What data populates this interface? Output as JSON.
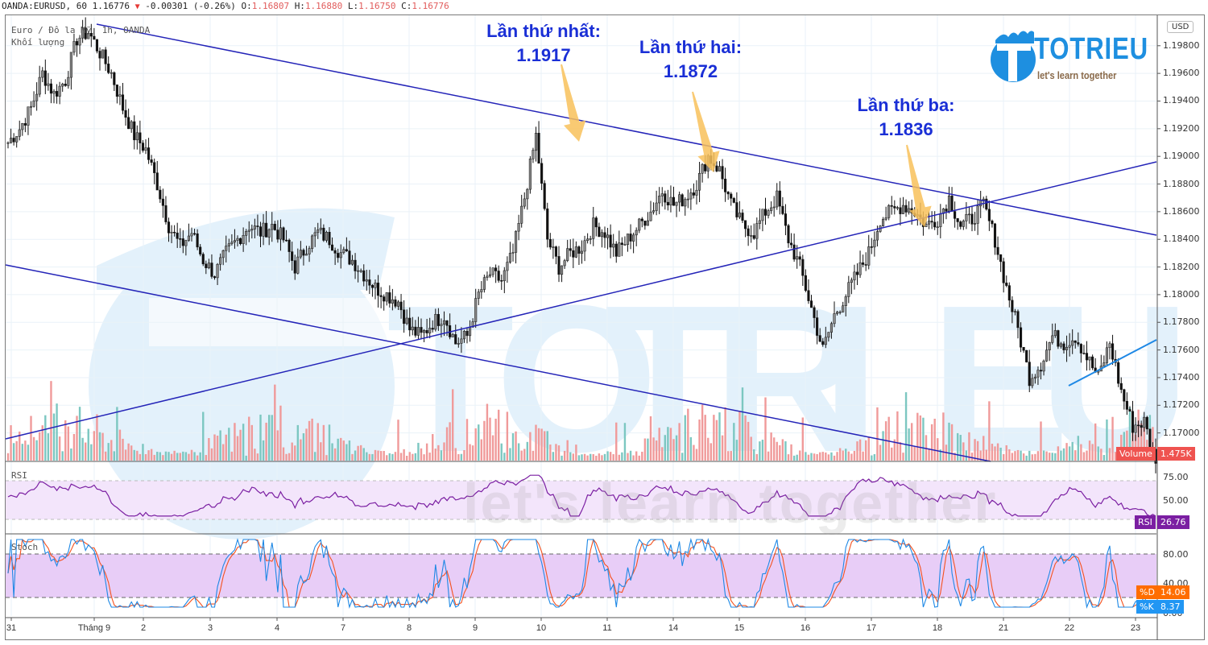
{
  "header": {
    "symbol": "OANDA:EURUSD, 60",
    "last": "1.16776",
    "change": "-0.00301 (-0.26%)",
    "open_label": "O:",
    "open": "1.16807",
    "high_label": "H:",
    "high": "1.16880",
    "low_label": "L:",
    "low": "1.16750",
    "close_label": "C:",
    "close": "1.16776",
    "direction_icon": "down-triangle-icon"
  },
  "legend": {
    "series_name": "Euro / Đô la Mỹ, 1h, OANDA",
    "volume_name": "Khối lượng"
  },
  "currency_button": "USD",
  "logo": {
    "name": "TOTRIEU",
    "slogan": "let's learn together"
  },
  "watermark": {
    "text": "let's learn together"
  },
  "annotations": [
    {
      "title": "Lần thứ nhất:",
      "value": "1.1917"
    },
    {
      "title": "Lần thứ hai:",
      "value": "1.1872"
    },
    {
      "title": "Lần thứ ba:",
      "value": "1.1836"
    }
  ],
  "price_axis": {
    "ticks": [
      "1.19800",
      "1.19600",
      "1.19400",
      "1.19200",
      "1.19000",
      "1.18800",
      "1.18600",
      "1.18400",
      "1.18200",
      "1.18000",
      "1.17800",
      "1.17600",
      "1.17400",
      "1.17200",
      "1.17000"
    ],
    "volume_tag": {
      "label": "Volume",
      "value": "1.475K"
    }
  },
  "rsi_pane": {
    "title": "RSI",
    "ticks": [
      "75.00",
      "50.00"
    ],
    "tag_label": "RSI",
    "tag_value": "26.76"
  },
  "stoch_pane": {
    "title": "Stoch",
    "ticks": [
      "80.00",
      "40.00",
      "0.00"
    ],
    "d_label": "%D",
    "d_value": "14.06",
    "k_label": "%K",
    "k_value": "8.37"
  },
  "time_axis": {
    "labels": [
      "31",
      "Tháng 9",
      "2",
      "3",
      "4",
      "7",
      "8",
      "9",
      "10",
      "11",
      "14",
      "15",
      "16",
      "17",
      "18",
      "21",
      "22",
      "23"
    ]
  },
  "colors": {
    "trendline": "#2424b8",
    "trendline_light": "#1e88e5",
    "annotation": "#1a2fd6",
    "arrow": "#f8c15a",
    "volume_up": "#7cc7c1",
    "volume_down": "#f09a9a",
    "rsi_line": "#7b1fa2",
    "rsi_band": "#f3e5fb",
    "stoch_band": "#e8cdf7",
    "stoch_k": "#1e88e5",
    "stoch_d": "#f4511e",
    "tag_volume": "#ef5350",
    "tag_rsi": "#7b1fa2",
    "tag_d": "#ff6d00",
    "tag_k": "#2196f3"
  },
  "chart_data": {
    "type": "candlestick",
    "title": "OANDA:EURUSD, 60 (Euro / Đô la Mỹ, 1h)",
    "x_labels": [
      "31",
      "Tháng 9",
      "2",
      "3",
      "4",
      "7",
      "8",
      "9",
      "10",
      "11",
      "14",
      "15",
      "16",
      "17",
      "18",
      "21",
      "22",
      "23"
    ],
    "ylim": [
      1.168,
      1.2002
    ],
    "close_path": [
      1.191,
      1.192,
      1.1935,
      1.196,
      1.1945,
      1.1955,
      1.1985,
      1.199,
      1.1975,
      1.196,
      1.1935,
      1.1915,
      1.1905,
      1.188,
      1.185,
      1.1835,
      1.1845,
      1.1825,
      1.1815,
      1.183,
      1.184,
      1.185,
      1.1845,
      1.185,
      1.184,
      1.182,
      1.1835,
      1.1845,
      1.184,
      1.183,
      1.1825,
      1.1815,
      1.1805,
      1.18,
      1.1795,
      1.1775,
      1.177,
      1.178,
      1.1785,
      1.1765,
      1.177,
      1.18,
      1.1815,
      1.181,
      1.183,
      1.187,
      1.1915,
      1.184,
      1.182,
      1.183,
      1.1835,
      1.185,
      1.1845,
      1.183,
      1.184,
      1.185,
      1.186,
      1.1875,
      1.1865,
      1.187,
      1.188,
      1.19,
      1.189,
      1.1865,
      1.185,
      1.1845,
      1.186,
      1.187,
      1.184,
      1.182,
      1.179,
      1.176,
      1.1785,
      1.18,
      1.1815,
      1.183,
      1.1855,
      1.186,
      1.1865,
      1.186,
      1.185,
      1.1855,
      1.187,
      1.185,
      1.1855,
      1.1865,
      1.184,
      1.1805,
      1.1775,
      1.174,
      1.175,
      1.177,
      1.1765,
      1.177,
      1.1755,
      1.174,
      1.1765,
      1.173,
      1.1705,
      1.1708,
      1.1678
    ],
    "trendlines": [
      {
        "name": "upper-descending",
        "from": [
          1.1985,
          "31"
        ],
        "to": [
          1.1845,
          "23"
        ]
      },
      {
        "name": "lower-descending",
        "from": [
          1.1822,
          "31"
        ],
        "to": [
          1.168,
          "21"
        ]
      },
      {
        "name": "ascending-support",
        "from": [
          1.1692,
          "31"
        ],
        "to": [
          1.19,
          "23"
        ]
      },
      {
        "name": "short-ascending",
        "from": [
          1.1731,
          "22"
        ],
        "to": [
          1.1767,
          "23"
        ]
      }
    ],
    "annotations": [
      {
        "label": "Lần thứ nhất",
        "price": 1.1917
      },
      {
        "label": "Lần thứ hai",
        "price": 1.1872
      },
      {
        "label": "Lần thứ ba",
        "price": 1.1836
      }
    ],
    "volume_last": "1.475K",
    "rsi": {
      "last": 26.76,
      "band": [
        30,
        70
      ],
      "ticks": [
        75,
        50
      ]
    },
    "stoch": {
      "k_last": 8.37,
      "d_last": 14.06,
      "band": [
        20,
        80
      ],
      "ticks": [
        80,
        40,
        0
      ]
    }
  }
}
